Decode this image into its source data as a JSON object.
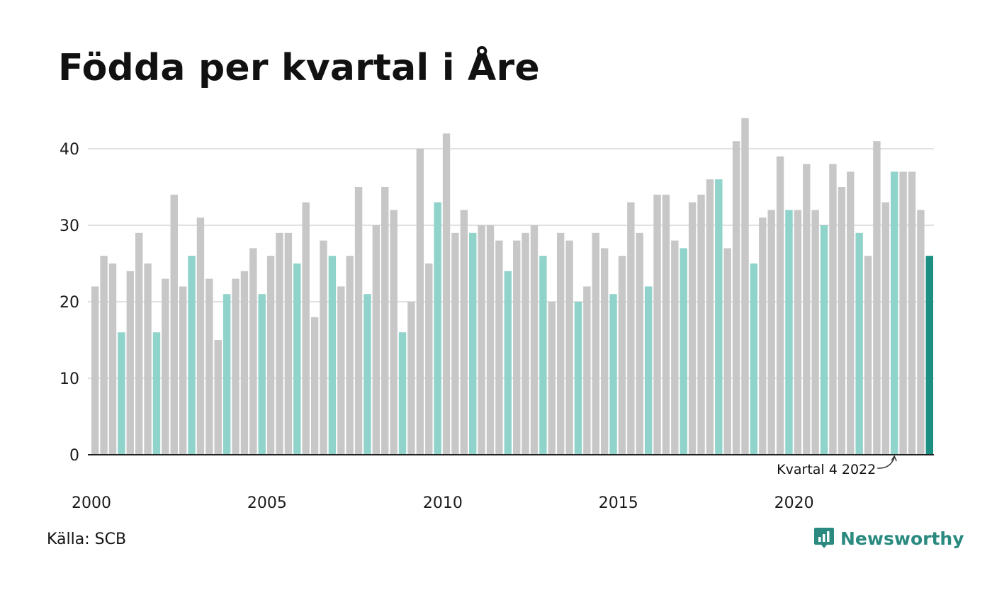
{
  "title": "Födda per kvartal i Åre",
  "source": "Källa: SCB",
  "brand": {
    "name": "Newsworthy",
    "icon": "newsworthy-logo-icon"
  },
  "colors": {
    "other_quarters": "#c7c7c7",
    "same_quarter": "#8fd3cb",
    "latest": "#1a8f82",
    "grid": "#e1e1e1",
    "axis": "#222222",
    "brand": "#2a8a80"
  },
  "chart_data": {
    "type": "bar",
    "title": "Födda per kvartal i Åre",
    "xlabel": "",
    "ylabel": "",
    "ylim": [
      0,
      45
    ],
    "yticks": [
      0,
      10,
      20,
      30,
      40
    ],
    "grid": true,
    "x_tick_labels": [
      "2000",
      "2005",
      "2010",
      "2015",
      "2020"
    ],
    "categories": [
      "2000 K1",
      "2000 K2",
      "2000 K3",
      "2000 K4",
      "2001 K1",
      "2001 K2",
      "2001 K3",
      "2001 K4",
      "2002 K1",
      "2002 K2",
      "2002 K3",
      "2002 K4",
      "2003 K1",
      "2003 K2",
      "2003 K3",
      "2003 K4",
      "2004 K1",
      "2004 K2",
      "2004 K3",
      "2004 K4",
      "2005 K1",
      "2005 K2",
      "2005 K3",
      "2005 K4",
      "2006 K1",
      "2006 K2",
      "2006 K3",
      "2006 K4",
      "2007 K1",
      "2007 K2",
      "2007 K3",
      "2007 K4",
      "2008 K1",
      "2008 K2",
      "2008 K3",
      "2008 K4",
      "2009 K1",
      "2009 K2",
      "2009 K3",
      "2009 K4",
      "2010 K1",
      "2010 K2",
      "2010 K3",
      "2010 K4",
      "2011 K1",
      "2011 K2",
      "2011 K3",
      "2011 K4",
      "2012 K1",
      "2012 K2",
      "2012 K3",
      "2012 K4",
      "2013 K1",
      "2013 K2",
      "2013 K3",
      "2013 K4",
      "2014 K1",
      "2014 K2",
      "2014 K3",
      "2014 K4",
      "2015 K1",
      "2015 K2",
      "2015 K3",
      "2015 K4",
      "2016 K1",
      "2016 K2",
      "2016 K3",
      "2016 K4",
      "2017 K1",
      "2017 K2",
      "2017 K3",
      "2017 K4",
      "2018 K1",
      "2018 K2",
      "2018 K3",
      "2018 K4",
      "2019 K1",
      "2019 K2",
      "2019 K3",
      "2019 K4",
      "2020 K1",
      "2020 K2",
      "2020 K3",
      "2020 K4",
      "2021 K1",
      "2021 K2",
      "2021 K3",
      "2021 K4",
      "2022 K1",
      "2022 K2",
      "2022 K3",
      "2022 K4",
      "2023 K1",
      "2023 K2",
      "2023 K3",
      "2023 K4"
    ],
    "values": [
      22,
      26,
      25,
      16,
      24,
      29,
      25,
      16,
      23,
      34,
      22,
      26,
      31,
      23,
      15,
      21,
      23,
      24,
      27,
      21,
      26,
      29,
      29,
      25,
      33,
      18,
      28,
      26,
      22,
      26,
      35,
      21,
      30,
      35,
      32,
      16,
      20,
      40,
      25,
      33,
      42,
      29,
      32,
      29,
      30,
      30,
      28,
      24,
      28,
      29,
      30,
      26,
      20,
      29,
      28,
      20,
      22,
      29,
      27,
      21,
      26,
      33,
      29,
      22,
      34,
      34,
      28,
      27,
      33,
      34,
      36,
      36,
      27,
      41,
      44,
      25,
      31,
      32,
      39,
      32,
      32,
      38,
      32,
      30,
      38,
      35,
      37,
      29,
      26,
      41,
      33,
      37,
      37,
      37,
      32,
      26
    ],
    "highlight_quarter": "K4",
    "annotation": {
      "label": "Kvartal 4 2022",
      "target": "2022 K4"
    }
  }
}
